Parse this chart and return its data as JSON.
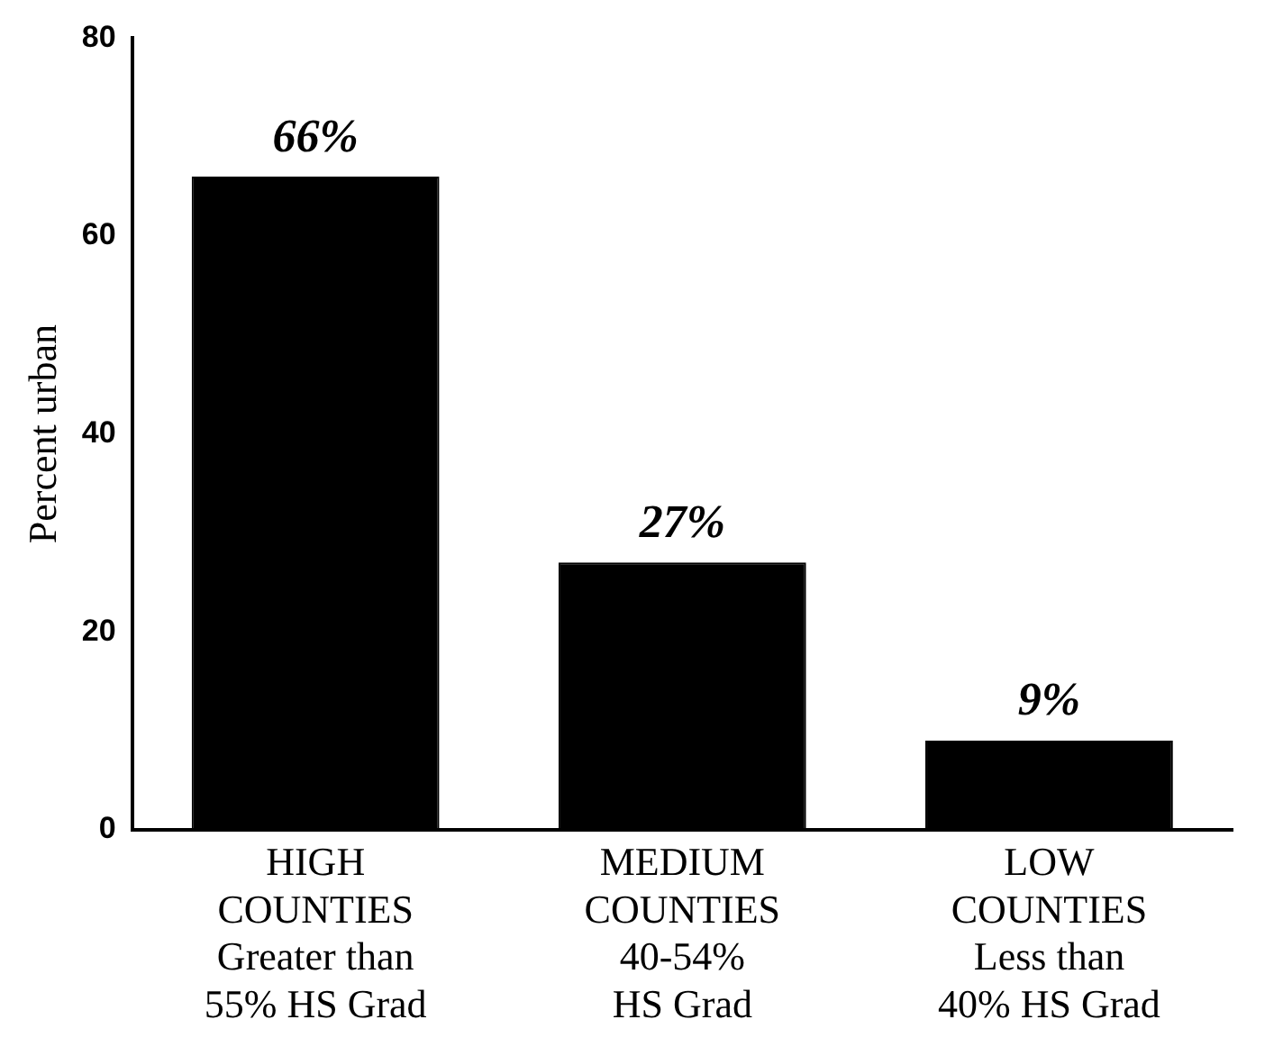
{
  "chart_data": {
    "type": "bar",
    "ylabel": "Percent urban",
    "categories": [
      "HIGH\nCOUNTIES\nGreater than\n55% HS Grad",
      "MEDIUM\nCOUNTIES\n40-54%\nHS Grad",
      "LOW\nCOUNTIES\nLess than\n40% HS Grad"
    ],
    "values": [
      66,
      27,
      9
    ],
    "color": "#000000",
    "value_labels": [
      "66%",
      "27%",
      "9%"
    ],
    "ylim": [
      0,
      80
    ],
    "yticks": [
      0,
      20,
      40,
      60,
      80
    ],
    "grid": false,
    "legend": false
  }
}
